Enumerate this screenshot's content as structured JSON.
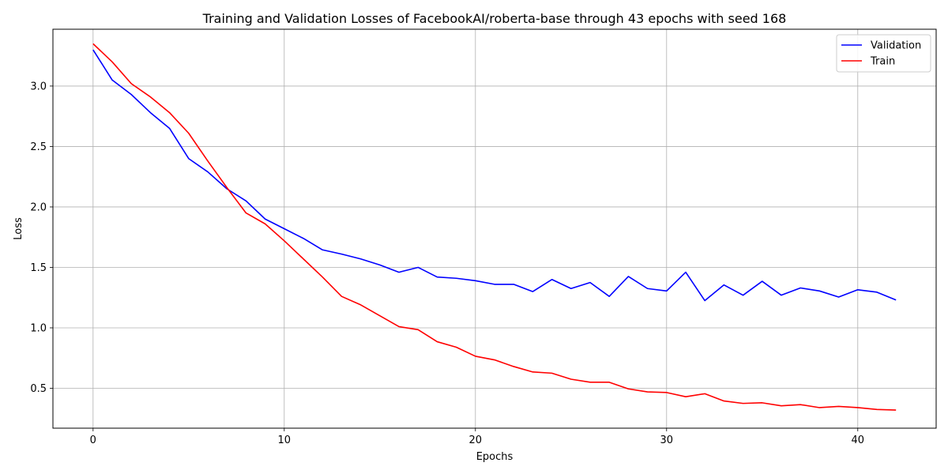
{
  "chart_data": {
    "type": "line",
    "title": "Training and Validation Losses of FacebookAI/roberta-base through 43 epochs with seed 168",
    "xlabel": "Epochs",
    "ylabel": "Loss",
    "xlim": [
      -2.1,
      44.1
    ],
    "ylim": [
      0.17,
      3.47
    ],
    "xticks": [
      0,
      10,
      20,
      30,
      40
    ],
    "yticks": [
      0.5,
      1.0,
      1.5,
      2.0,
      2.5,
      3.0
    ],
    "ytick_labels": [
      "0.5",
      "1.0",
      "1.5",
      "2.0",
      "2.5",
      "3.0"
    ],
    "grid": true,
    "legend_position": "top-right",
    "x": [
      0,
      1,
      2,
      3,
      4,
      5,
      6,
      7,
      8,
      9,
      10,
      11,
      12,
      13,
      14,
      15,
      16,
      17,
      18,
      19,
      20,
      21,
      22,
      23,
      24,
      25,
      26,
      27,
      28,
      29,
      30,
      31,
      32,
      33,
      34,
      35,
      36,
      37,
      38,
      39,
      40,
      41,
      42
    ],
    "series": [
      {
        "name": "Validation",
        "color": "#0000ff",
        "values": [
          3.3,
          3.05,
          2.93,
          2.78,
          2.65,
          2.4,
          2.29,
          2.15,
          2.05,
          1.9,
          1.82,
          1.74,
          1.645,
          1.61,
          1.57,
          1.52,
          1.46,
          1.5,
          1.42,
          1.41,
          1.39,
          1.36,
          1.36,
          1.3,
          1.4,
          1.325,
          1.375,
          1.26,
          1.425,
          1.325,
          1.305,
          1.46,
          1.225,
          1.355,
          1.27,
          1.385,
          1.27,
          1.33,
          1.305,
          1.255,
          1.315,
          1.295,
          1.23
        ]
      },
      {
        "name": "Train",
        "color": "#ff0000",
        "values": [
          3.35,
          3.2,
          3.02,
          2.91,
          2.78,
          2.61,
          2.38,
          2.16,
          1.95,
          1.86,
          1.72,
          1.57,
          1.42,
          1.26,
          1.19,
          1.1,
          1.01,
          0.985,
          0.885,
          0.84,
          0.765,
          0.735,
          0.68,
          0.635,
          0.625,
          0.575,
          0.55,
          0.55,
          0.495,
          0.47,
          0.465,
          0.43,
          0.455,
          0.395,
          0.375,
          0.38,
          0.355,
          0.365,
          0.34,
          0.35,
          0.34,
          0.325,
          0.32
        ]
      }
    ]
  }
}
